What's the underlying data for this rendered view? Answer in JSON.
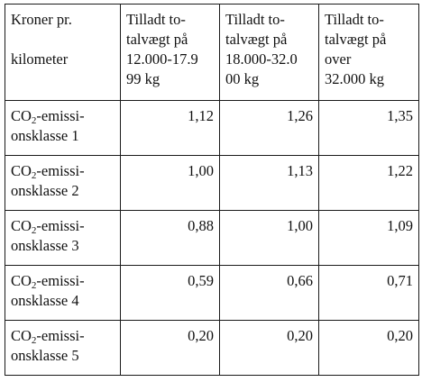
{
  "table": {
    "header": {
      "first_col": [
        "Kroner pr.",
        "kilometer"
      ],
      "columns": [
        [
          "Tilladt to-",
          "talvægt på",
          "12.000-17.9",
          "99 kg"
        ],
        [
          "Tilladt to-",
          "talvægt på",
          "18.000-32.0",
          "00 kg"
        ],
        [
          "Tilladt to-",
          "talvægt på",
          "over",
          "32.000 kg"
        ]
      ]
    },
    "rows": [
      {
        "class_line1": "-emissi-",
        "class_line2": "onsklasse 1",
        "values": [
          "1,12",
          "1,26",
          "1,35"
        ]
      },
      {
        "class_line1": "-emissi-",
        "class_line2": "onsklasse 2",
        "values": [
          "1,00",
          "1,13",
          "1,22"
        ]
      },
      {
        "class_line1": "-emissi-",
        "class_line2": "onsklasse 3",
        "values": [
          "0,88",
          "1,00",
          "1,09"
        ]
      },
      {
        "class_line1": "-emissi-",
        "class_line2": "onsklasse 4",
        "values": [
          "0,59",
          "0,66",
          "0,71"
        ]
      },
      {
        "class_line1": "-emissi-",
        "class_line2": "onsklasse 5",
        "values": [
          "0,20",
          "0,20",
          "0,20"
        ]
      }
    ],
    "co2_prefix": "CO",
    "co2_subscript": "2"
  }
}
